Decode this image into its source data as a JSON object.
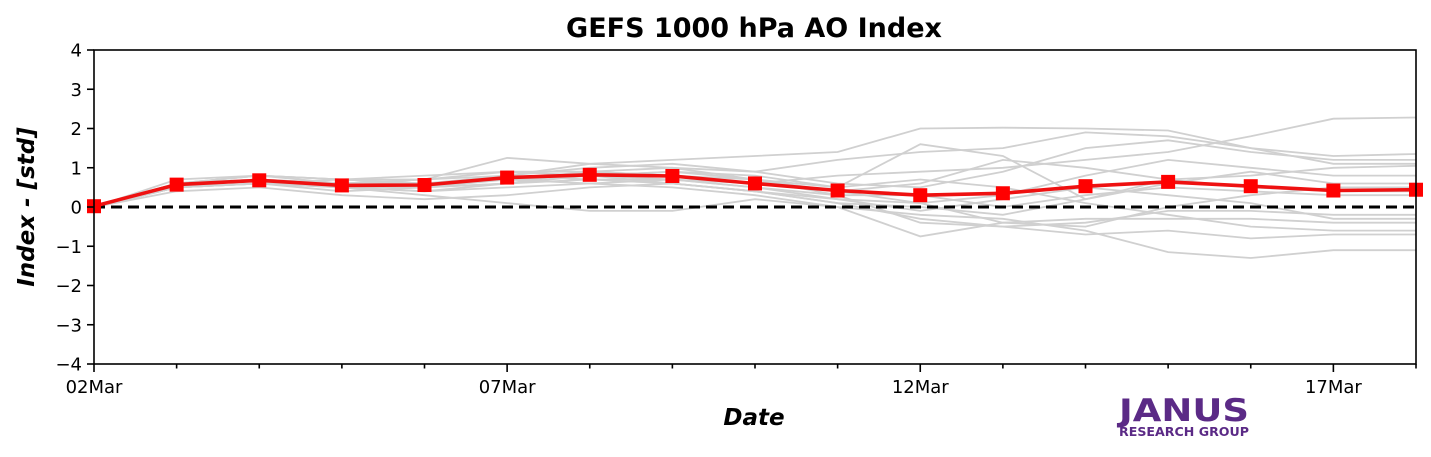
{
  "chart_data": {
    "type": "line",
    "title": "GEFS 1000 hPa AO Index",
    "xlabel": "Date",
    "ylabel": "Index - [std]",
    "x": [
      "2020-03-02",
      "2020-03-03",
      "2020-03-04",
      "2020-03-05",
      "2020-03-06",
      "2020-03-07",
      "2020-03-08",
      "2020-03-09",
      "2020-03-10",
      "2020-03-11",
      "2020-03-12",
      "2020-03-13",
      "2020-03-14",
      "2020-03-15",
      "2020-03-16",
      "2020-03-17",
      "2020-03-18"
    ],
    "xlim": [
      "2020-03-02",
      "2020-03-18"
    ],
    "ylim": [
      -4,
      4
    ],
    "yticks": [
      -4,
      -3,
      -2,
      -1,
      0,
      1,
      2,
      3,
      4
    ],
    "ytick_labels": [
      "−4",
      "−3",
      "−2",
      "−1",
      "0",
      "1",
      "2",
      "3",
      "4"
    ],
    "xticks_major": [
      "2020-03-02",
      "2020-03-07",
      "2020-03-12",
      "2020-03-17"
    ],
    "xtick_labels": [
      "02Mar",
      "07Mar",
      "12Mar",
      "17Mar"
    ],
    "grid": false,
    "legend": "none",
    "zero_line": {
      "y": 0,
      "style": "dashed",
      "color": "#000000"
    },
    "colors": {
      "ensemble": "#d0d0d0",
      "mean": "#ee1111",
      "marker": "#ff0000"
    },
    "mean": {
      "values": [
        0.02,
        0.57,
        0.68,
        0.55,
        0.56,
        0.75,
        0.82,
        0.79,
        0.6,
        0.42,
        0.3,
        0.35,
        0.53,
        0.64,
        0.53,
        0.42,
        0.44
      ]
    },
    "ensemble": [
      [
        0.0,
        0.6,
        0.8,
        0.7,
        0.6,
        0.7,
        0.8,
        0.9,
        0.8,
        0.5,
        1.6,
        1.3,
        0.2,
        0.7,
        0.8,
        1.0,
        1.05
      ],
      [
        0.0,
        0.5,
        0.6,
        0.4,
        0.5,
        0.8,
        1.1,
        1.2,
        1.3,
        1.4,
        2.0,
        2.02,
        2.0,
        1.95,
        1.5,
        1.1,
        1.1
      ],
      [
        0.0,
        0.6,
        0.7,
        0.6,
        0.7,
        1.25,
        1.1,
        1.0,
        0.9,
        1.2,
        1.4,
        1.5,
        1.9,
        1.8,
        1.5,
        1.3,
        1.35
      ],
      [
        0.0,
        0.5,
        0.6,
        0.5,
        0.4,
        0.5,
        0.6,
        0.7,
        0.6,
        0.8,
        0.9,
        1.0,
        1.2,
        1.4,
        1.8,
        2.25,
        2.28
      ],
      [
        0.0,
        0.6,
        0.7,
        0.5,
        0.3,
        0.1,
        -0.1,
        -0.1,
        0.2,
        0.0,
        -0.2,
        -0.3,
        -0.6,
        -1.15,
        -1.3,
        -1.1,
        -1.1
      ],
      [
        0.0,
        0.4,
        0.5,
        0.3,
        0.2,
        0.3,
        0.5,
        0.6,
        0.4,
        0.1,
        -0.3,
        -0.5,
        -0.7,
        -0.6,
        -0.8,
        -0.7,
        -0.7
      ],
      [
        0.0,
        0.7,
        0.8,
        0.6,
        0.5,
        0.6,
        0.7,
        0.7,
        0.5,
        0.2,
        -0.1,
        0.2,
        0.5,
        0.3,
        0.1,
        -0.3,
        -0.3
      ],
      [
        0.0,
        0.5,
        0.6,
        0.7,
        0.8,
        0.9,
        0.8,
        0.6,
        0.4,
        0.2,
        0.1,
        0.3,
        0.8,
        1.2,
        1.0,
        0.8,
        0.8
      ],
      [
        0.0,
        0.6,
        0.7,
        0.5,
        0.4,
        0.6,
        0.9,
        1.0,
        0.7,
        0.3,
        -0.4,
        -0.5,
        -0.4,
        -0.1,
        -0.1,
        -0.2,
        -0.2
      ],
      [
        0.0,
        0.5,
        0.7,
        0.6,
        0.6,
        0.7,
        0.6,
        0.5,
        0.3,
        0.0,
        -0.75,
        -0.4,
        -0.3,
        -0.3,
        -0.3,
        -0.4,
        -0.4
      ],
      [
        0.0,
        0.6,
        0.8,
        0.7,
        0.7,
        0.8,
        1.0,
        1.1,
        0.9,
        0.6,
        0.5,
        0.9,
        1.5,
        1.7,
        1.4,
        1.2,
        1.2
      ],
      [
        0.0,
        0.5,
        0.6,
        0.5,
        0.5,
        0.7,
        0.8,
        0.7,
        0.5,
        0.3,
        0.3,
        0.0,
        0.3,
        0.5,
        0.4,
        0.3,
        0.3
      ],
      [
        0.0,
        0.6,
        0.7,
        0.6,
        0.6,
        0.8,
        0.7,
        0.6,
        0.4,
        0.1,
        0.0,
        -0.2,
        0.2,
        0.6,
        0.9,
        0.6,
        0.6
      ],
      [
        0.0,
        0.5,
        0.6,
        0.6,
        0.7,
        0.9,
        0.9,
        0.8,
        0.6,
        0.4,
        0.6,
        1.2,
        1.0,
        0.7,
        0.5,
        0.4,
        0.4
      ],
      [
        0.0,
        0.6,
        0.7,
        0.6,
        0.5,
        0.6,
        0.8,
        0.9,
        0.7,
        0.4,
        0.1,
        -0.4,
        -0.5,
        0.0,
        0.3,
        0.5,
        0.5
      ],
      [
        0.0,
        0.6,
        0.8,
        0.7,
        0.6,
        0.7,
        0.9,
        0.8,
        0.7,
        0.5,
        0.7,
        0.5,
        0.1,
        -0.2,
        -0.5,
        -0.6,
        -0.6
      ]
    ]
  },
  "logo": {
    "main": "JANUS",
    "sub": "RESEARCH GROUP"
  }
}
